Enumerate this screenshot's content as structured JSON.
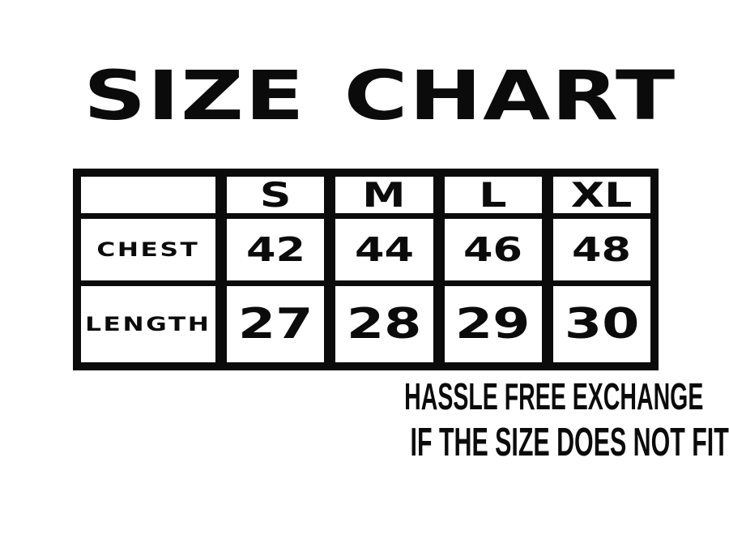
{
  "title": "SIZE CHART",
  "colors": {
    "ink": "#0b0b0b",
    "paper": "#ffffff"
  },
  "table": {
    "corner": "",
    "columns": [
      "S",
      "M",
      "L",
      "XL"
    ],
    "rows": [
      {
        "label": "CHEST",
        "values": [
          "42",
          "44",
          "46",
          "48"
        ]
      },
      {
        "label": "LENGTH",
        "values": [
          "27",
          "28",
          "29",
          "30"
        ]
      }
    ]
  },
  "footer": {
    "line1": "HASSLE FREE EXCHANGE",
    "line2": "IF THE SIZE DOES NOT FIT"
  },
  "chart_data": {
    "type": "table",
    "title": "SIZE CHART",
    "columns": [
      "",
      "S",
      "M",
      "L",
      "XL"
    ],
    "rows": [
      [
        "CHEST",
        42,
        44,
        46,
        48
      ],
      [
        "LENGTH",
        27,
        28,
        29,
        30
      ]
    ],
    "annotations": [
      "HASSLE FREE EXCHANGE",
      "IF THE SIZE DOES NOT FIT"
    ]
  }
}
